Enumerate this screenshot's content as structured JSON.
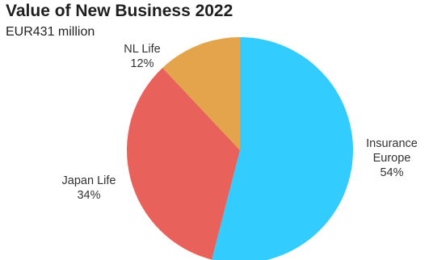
{
  "chart_data": {
    "type": "pie",
    "title": "Value of New Business 2022",
    "subtitle": "EUR431 million",
    "slices": [
      {
        "label_lines": [
          "Insurance",
          "Europe"
        ],
        "value": 54,
        "value_label": "54%",
        "color": "#33ccff"
      },
      {
        "label_lines": [
          "Japan Life"
        ],
        "value": 34,
        "value_label": "34%",
        "color": "#e8615a"
      },
      {
        "label_lines": [
          "NL Life"
        ],
        "value": 12,
        "value_label": "12%",
        "color": "#e3a44c"
      }
    ]
  }
}
